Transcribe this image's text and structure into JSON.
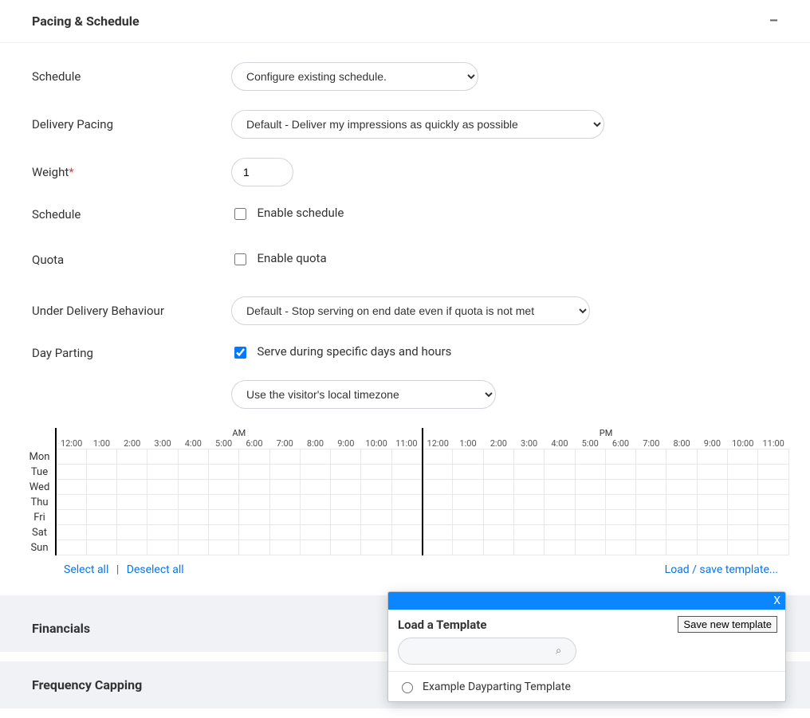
{
  "section": {
    "title": "Pacing & Schedule",
    "collapse_glyph": "–"
  },
  "form": {
    "schedule_label": "Schedule",
    "schedule_value": "Configure existing schedule.",
    "delivery_pacing_label": "Delivery Pacing",
    "delivery_pacing_value": "Default - Deliver my impressions as quickly as possible",
    "weight_label": "Weight",
    "weight_value": "1",
    "schedule2_label": "Schedule",
    "enable_schedule_label": "Enable schedule",
    "quota_label": "Quota",
    "enable_quota_label": "Enable quota",
    "under_delivery_label": "Under Delivery Behaviour",
    "under_delivery_value": "Default - Stop serving on end date even if quota is not met",
    "day_parting_label": "Day Parting",
    "day_parting_cb_label": "Serve during specific days and hours",
    "timezone_value": "Use the visitor's local timezone"
  },
  "dayparting": {
    "am_label": "AM",
    "pm_label": "PM",
    "hours": [
      "12:00",
      "1:00",
      "2:00",
      "3:00",
      "4:00",
      "5:00",
      "6:00",
      "7:00",
      "8:00",
      "9:00",
      "10:00",
      "11:00"
    ],
    "days": [
      "Mon",
      "Tue",
      "Wed",
      "Thu",
      "Fri",
      "Sat",
      "Sun"
    ],
    "select_all": "Select all",
    "deselect_all": "Deselect all",
    "load_save": "Load / save template..."
  },
  "sections_below": {
    "financials": "Financials",
    "frequency_capping": "Frequency Capping"
  },
  "popup": {
    "title": "Load a Template",
    "save_btn": "Save new template",
    "search_placeholder": "",
    "item1": "Example Dayparting Template",
    "close_glyph": "X",
    "mag_glyph": "⌕"
  },
  "colors": {
    "link": "#0b74e5",
    "titlebar": "#0b86ff"
  }
}
